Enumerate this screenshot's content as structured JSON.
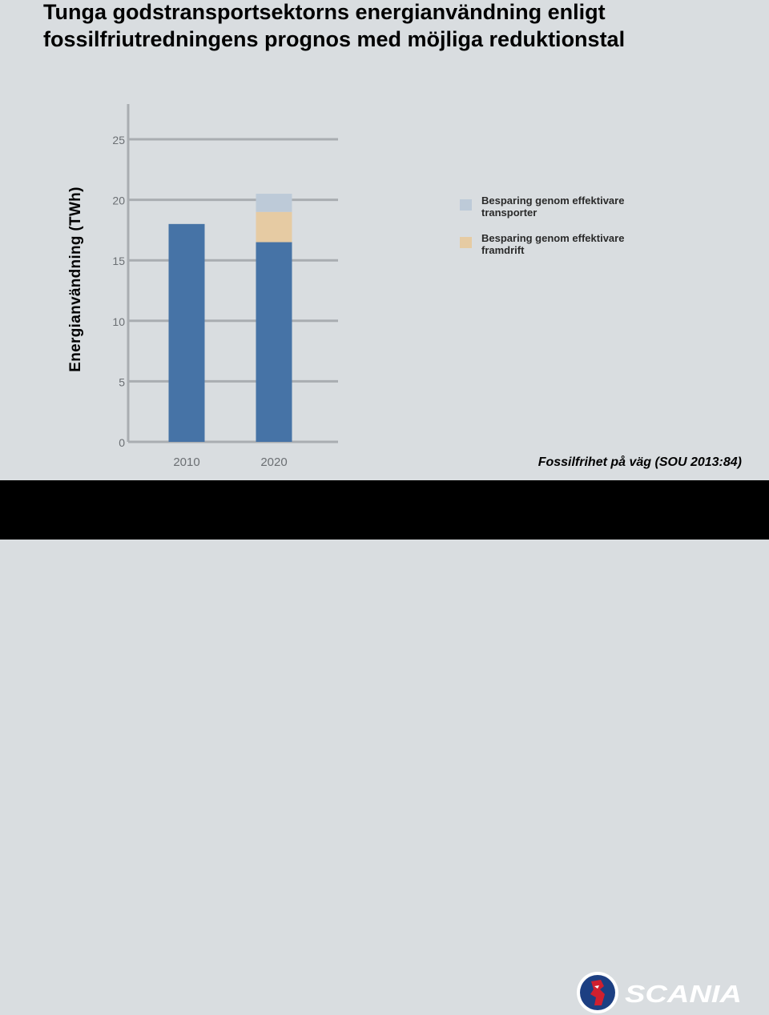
{
  "title": "Tunga godstransportsektorns energianvändning enligt fossilfriutredningens prognos med möjliga reduktionstal",
  "source": "Fossilfrihet på väg (SOU 2013:84)",
  "brand": {
    "name": "SCANIA"
  },
  "colors": {
    "background": "#d9dde0",
    "footer": "#000000",
    "axis": "#a9adb1"
  },
  "chart_data": {
    "type": "bar",
    "stacked": true,
    "categories": [
      "2010",
      "2020"
    ],
    "ylabel": "Energianvändning (TWh)",
    "ylim": [
      0,
      25
    ],
    "yticks": [
      0,
      5,
      10,
      15,
      20,
      25
    ],
    "grid": true,
    "legend_position": "right",
    "series": [
      {
        "name": "",
        "color": "#4673a6",
        "values": [
          18.0,
          16.5
        ]
      },
      {
        "name": "Besparing genom effektivare framdrift",
        "color": "#e6cba3",
        "values": [
          0,
          2.5
        ]
      },
      {
        "name": "Besparing genom effektivare transporter",
        "color": "#bdcad8",
        "values": [
          0,
          1.5
        ]
      }
    ],
    "legend": [
      {
        "label": "Besparing genom effektivare transporter",
        "color": "#bdcad8"
      },
      {
        "label": "Besparing genom effektivare framdrift",
        "color": "#e6cba3"
      }
    ]
  }
}
